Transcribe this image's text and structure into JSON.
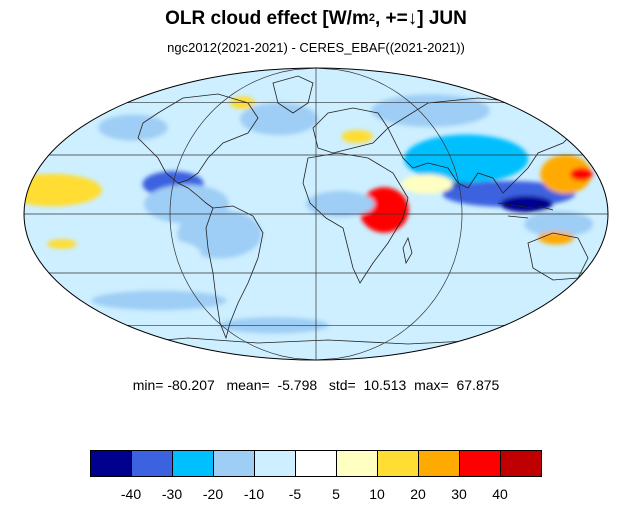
{
  "title": {
    "prefix": "OLR cloud effect [W/m",
    "superscript": "2",
    "middle": ", +=",
    "arrow": "↓",
    "suffix": "]  JUN"
  },
  "subtitle": "ngc2012(2021-2021) - CERES_EBAF((2021-2021))",
  "stats": {
    "min_label": "min=",
    "min": "-80.207",
    "mean_label": "mean=",
    "mean": "-5.798",
    "std_label": "std=",
    "std": "10.513",
    "max_label": "max=",
    "max": "67.875"
  },
  "colorbar": {
    "colors": [
      "#00008f",
      "#3d62e0",
      "#00bfff",
      "#9ecdf5",
      "#cdefff",
      "#ffffff",
      "#ffffc2",
      "#ffdd33",
      "#ffaa00",
      "#ff0000",
      "#c00000"
    ],
    "ticks": [
      "-40",
      "-30",
      "-20",
      "-10",
      "-5",
      "5",
      "10",
      "20",
      "30",
      "40"
    ]
  },
  "map": {
    "projection": "mollweide",
    "patches": [
      {
        "lon": -170,
        "lat": 14,
        "rx": 14,
        "ry": 5,
        "level": 9
      },
      {
        "lon": -165,
        "lat": 12,
        "rx": 30,
        "ry": 10,
        "level": 7
      },
      {
        "lon": -150,
        "lat": -5,
        "rx": 25,
        "ry": 6,
        "level": 4
      },
      {
        "lon": -90,
        "lat": 15,
        "rx": 18,
        "ry": 8,
        "level": 1
      },
      {
        "lon": -80,
        "lat": 5,
        "rx": 25,
        "ry": 12,
        "level": 3
      },
      {
        "lon": -60,
        "lat": -10,
        "rx": 25,
        "ry": 15,
        "level": 3
      },
      {
        "lon": -110,
        "lat": -20,
        "rx": 35,
        "ry": 10,
        "level": 4
      },
      {
        "lon": -30,
        "lat": 50,
        "rx": 30,
        "ry": 10,
        "level": 3
      },
      {
        "lon": 40,
        "lat": 2,
        "rx": 8,
        "ry": 9,
        "level": 10
      },
      {
        "lon": 42,
        "lat": 2,
        "rx": 14,
        "ry": 14,
        "level": 9
      },
      {
        "lon": 15,
        "lat": 5,
        "rx": 20,
        "ry": 8,
        "level": 3
      },
      {
        "lon": 90,
        "lat": 20,
        "rx": 20,
        "ry": 12,
        "level": 0
      },
      {
        "lon": 100,
        "lat": 28,
        "rx": 40,
        "ry": 15,
        "level": 2
      },
      {
        "lon": 120,
        "lat": 10,
        "rx": 40,
        "ry": 8,
        "level": 1
      },
      {
        "lon": 130,
        "lat": 5,
        "rx": 15,
        "ry": 5,
        "level": 0
      },
      {
        "lon": 160,
        "lat": 20,
        "rx": 15,
        "ry": 12,
        "level": 8
      },
      {
        "lon": 170,
        "lat": 20,
        "rx": 6,
        "ry": 4,
        "level": 9
      },
      {
        "lon": 150,
        "lat": -5,
        "rx": 20,
        "ry": 8,
        "level": 3
      },
      {
        "lon": 150,
        "lat": -12,
        "rx": 10,
        "ry": 4,
        "level": 8
      },
      {
        "lon": -120,
        "lat": -45,
        "rx": 50,
        "ry": 6,
        "level": 3
      },
      {
        "lon": 60,
        "lat": -50,
        "rx": 70,
        "ry": 6,
        "level": 4
      },
      {
        "lon": -40,
        "lat": -60,
        "rx": 50,
        "ry": 5,
        "level": 3
      },
      {
        "lon": 100,
        "lat": 55,
        "rx": 50,
        "ry": 10,
        "level": 3
      },
      {
        "lon": -140,
        "lat": 45,
        "rx": 25,
        "ry": 8,
        "level": 3
      },
      {
        "lon": -160,
        "lat": -15,
        "rx": 8,
        "ry": 3,
        "level": 7
      },
      {
        "lon": 30,
        "lat": 40,
        "rx": 10,
        "ry": 4,
        "level": 7
      },
      {
        "lon": 70,
        "lat": 15,
        "rx": 15,
        "ry": 6,
        "level": 6
      },
      {
        "lon": -70,
        "lat": 60,
        "rx": 10,
        "ry": 4,
        "level": 7
      }
    ]
  }
}
